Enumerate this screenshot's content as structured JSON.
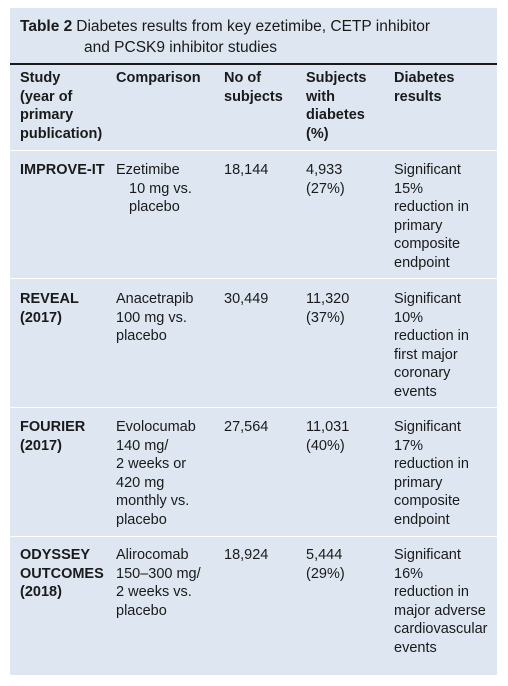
{
  "table": {
    "label": "Table 2",
    "title_line1": "Diabetes results from key ezetimibe, CETP inhibitor",
    "title_line2": "and PCSK9 inhibitor studies",
    "headers": {
      "study": [
        "Study",
        "(year of",
        "primary",
        "publication)"
      ],
      "comparison": [
        "Comparison"
      ],
      "subjects": [
        "No of",
        "subjects"
      ],
      "diabetes": [
        "Subjects",
        "with",
        "diabetes",
        "(%)"
      ],
      "results": [
        "Diabetes",
        "results"
      ]
    },
    "rows": [
      {
        "study": [
          "IMPROVE-IT"
        ],
        "comparison": [
          "Ezetimibe",
          "10 mg vs.",
          "placebo"
        ],
        "subjects": [
          "18,144"
        ],
        "diabetes": [
          "4,933",
          "(27%)"
        ],
        "results": [
          "Significant",
          "15%",
          "reduction in",
          "primary",
          "composite",
          "endpoint"
        ]
      },
      {
        "study": [
          "REVEAL",
          "(2017)"
        ],
        "comparison": [
          "Anacetrapib",
          "100 mg vs.",
          "placebo"
        ],
        "subjects": [
          "30,449"
        ],
        "diabetes": [
          "11,320",
          "(37%)"
        ],
        "results": [
          "Significant",
          "10%",
          "reduction in",
          "first major",
          "coronary",
          "events"
        ]
      },
      {
        "study": [
          "FOURIER",
          "(2017)"
        ],
        "comparison": [
          "Evolocumab",
          "140 mg/",
          "2 weeks or",
          "420 mg",
          "monthly vs.",
          "placebo"
        ],
        "subjects": [
          "27,564"
        ],
        "diabetes": [
          "11,031",
          "(40%)"
        ],
        "results": [
          "Significant",
          "17%",
          "reduction in",
          "primary",
          "composite",
          "endpoint"
        ]
      },
      {
        "study": [
          "ODYSSEY",
          "OUTCOMES",
          "(2018)"
        ],
        "comparison": [
          "Alirocomab",
          "150–300 mg/",
          "2 weeks vs.",
          "placebo"
        ],
        "subjects": [
          "18,924"
        ],
        "diabetes": [
          "5,444",
          "(29%)"
        ],
        "results": [
          "Significant",
          "16%",
          "reduction in",
          "major adverse",
          "cardiovascular",
          "events"
        ]
      }
    ]
  }
}
